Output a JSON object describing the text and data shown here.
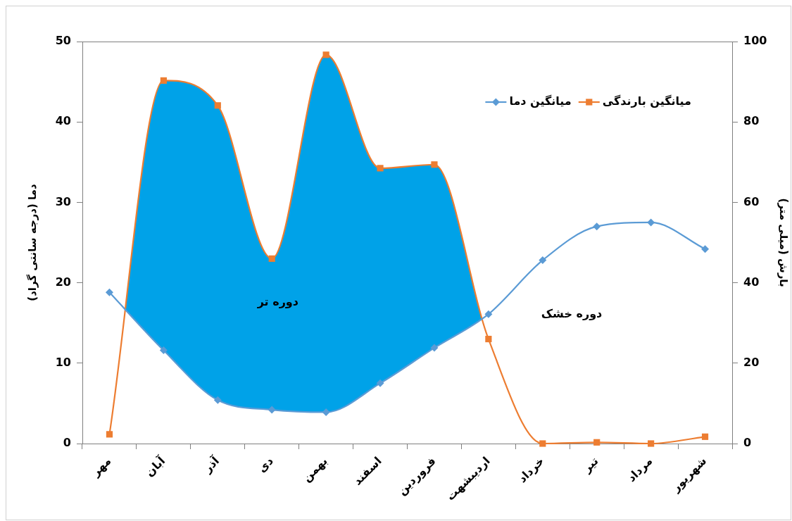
{
  "chart_data": {
    "type": "line",
    "categories": [
      "مهر",
      "آبان",
      "آذر",
      "دی",
      "بهمن",
      "اسفند",
      "فروردین",
      "اردیبشهت",
      "خرداد",
      "تیر",
      "مرداد",
      "شهریور"
    ],
    "ylabel": "دما (درجه سانتی گراد)",
    "y2label": "بارش (میلی متر)",
    "ylim": [
      0,
      50
    ],
    "yticks": [
      0,
      10,
      20,
      30,
      40,
      50
    ],
    "y2lim": [
      0,
      100
    ],
    "y2ticks": [
      0,
      20,
      40,
      60,
      80,
      100
    ],
    "series": [
      {
        "name": "میانگین دما",
        "color": "#5b9bd5",
        "marker": "diamond",
        "values": [
          18.8,
          11.6,
          5.4,
          4.2,
          3.9,
          7.5,
          11.9,
          16.1,
          22.8,
          27.0,
          27.5,
          24.2
        ]
      },
      {
        "name": "میانگین بارندگی",
        "color": "#ed7d31",
        "marker": "square",
        "axis": "y2",
        "values": [
          2.3,
          90.3,
          84.1,
          46.0,
          96.7,
          68.5,
          69.4,
          26.0,
          0,
          0.3,
          0,
          1.7
        ]
      }
    ],
    "annotations": [
      "دوره تر",
      "دوره خشک"
    ],
    "grid": false,
    "legend": "top right"
  }
}
